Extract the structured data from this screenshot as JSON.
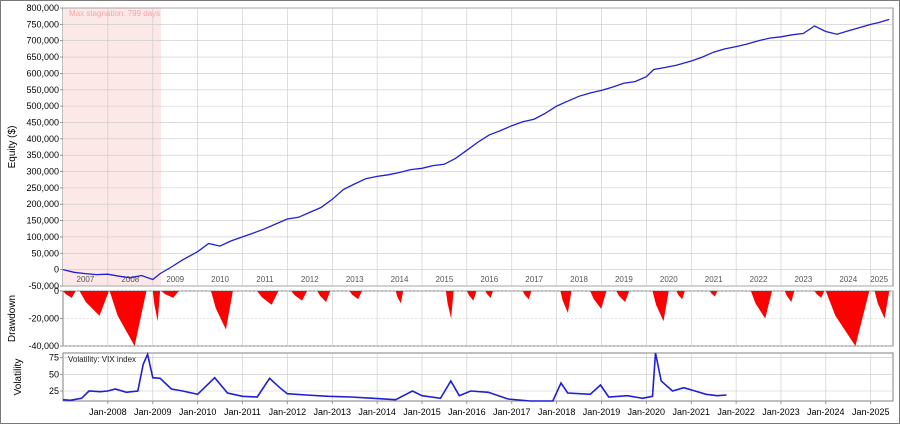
{
  "colors": {
    "equity_line": "#1f1fd6",
    "drawdown_fill": "#ff0000",
    "vix_line": "#1f1fd6",
    "stagnation_fill": "#fde8e8",
    "stagnation_text": "#f0a8a8",
    "grid": "#c8c8c8",
    "axis": "#808080"
  },
  "chart_data": [
    {
      "type": "line",
      "ylabel": "Equity ($)",
      "ylim": [
        -50000,
        800000
      ],
      "yticks": [
        -50000,
        0,
        50000,
        100000,
        150000,
        200000,
        250000,
        300000,
        350000,
        400000,
        450000,
        500000,
        550000,
        600000,
        650000,
        700000,
        750000,
        800000
      ],
      "ytick_labels": [
        "-50,000",
        "0",
        "50,000",
        "100,000",
        "150,000",
        "200,000",
        "250,000",
        "300,000",
        "350,000",
        "400,000",
        "450,000",
        "500,000",
        "550,000",
        "600,000",
        "650,000",
        "700,000",
        "750,000",
        "800,000"
      ],
      "year_labels": [
        "2007",
        "2008",
        "2009",
        "2010",
        "2011",
        "2012",
        "2013",
        "2014",
        "2015",
        "2016",
        "2017",
        "2018",
        "2019",
        "2020",
        "2021",
        "2022",
        "2023",
        "2024",
        "2025"
      ],
      "annotation": "Max stagnation: 799 days",
      "stagnation_range": [
        "2007-01-01",
        "2009-03-10"
      ],
      "grid": true,
      "series": [
        {
          "x": [
            "2007-01-01",
            "2007-04-01",
            "2007-07-01",
            "2007-10-01",
            "2008-01-01",
            "2008-04-01",
            "2008-07-01",
            "2008-10-01",
            "2009-01-01",
            "2009-03-01",
            "2009-06-01",
            "2009-09-01",
            "2010-01-01",
            "2010-04-01",
            "2010-07-01",
            "2010-10-01",
            "2011-01-01",
            "2011-04-01",
            "2011-07-01",
            "2011-10-01",
            "2012-01-01",
            "2012-04-01",
            "2012-07-01",
            "2012-10-01",
            "2013-01-01",
            "2013-04-01",
            "2013-07-01",
            "2013-10-01",
            "2014-01-01",
            "2014-04-01",
            "2014-07-01",
            "2014-10-01",
            "2015-01-01",
            "2015-04-01",
            "2015-07-01",
            "2015-10-01",
            "2016-01-01",
            "2016-04-01",
            "2016-07-01",
            "2016-10-01",
            "2017-01-01",
            "2017-04-01",
            "2017-07-01",
            "2017-10-01",
            "2018-01-01",
            "2018-04-01",
            "2018-07-01",
            "2018-10-01",
            "2019-01-01",
            "2019-04-01",
            "2019-07-01",
            "2019-10-01",
            "2020-01-01",
            "2020-03-01",
            "2020-06-01",
            "2020-09-01",
            "2021-01-01",
            "2021-04-01",
            "2021-07-01",
            "2021-10-01",
            "2022-01-01",
            "2022-04-01",
            "2022-07-01",
            "2022-10-01",
            "2023-01-01",
            "2023-04-01",
            "2023-07-01",
            "2023-10-01",
            "2024-01-01",
            "2024-04-01",
            "2024-07-01",
            "2024-10-01",
            "2025-01-01",
            "2025-03-01",
            "2025-06-01"
          ],
          "y": [
            0,
            -8000,
            -12000,
            -15000,
            -14000,
            -20000,
            -25000,
            -18000,
            -30000,
            -12000,
            8000,
            30000,
            55000,
            80000,
            72000,
            88000,
            100000,
            112000,
            125000,
            140000,
            155000,
            160000,
            175000,
            190000,
            215000,
            245000,
            262000,
            278000,
            285000,
            290000,
            297000,
            306000,
            310000,
            318000,
            322000,
            340000,
            365000,
            390000,
            412000,
            425000,
            440000,
            452000,
            460000,
            478000,
            500000,
            515000,
            530000,
            540000,
            548000,
            558000,
            570000,
            575000,
            590000,
            612000,
            618000,
            625000,
            638000,
            650000,
            665000,
            675000,
            682000,
            690000,
            700000,
            708000,
            712000,
            718000,
            722000,
            745000,
            728000,
            720000,
            730000,
            740000,
            750000,
            755000,
            765000
          ]
        }
      ]
    },
    {
      "type": "area",
      "ylabel": "Drawdown",
      "ylim": [
        -40000,
        0
      ],
      "yticks": [
        -40000,
        -20000,
        0
      ],
      "ytick_labels": [
        "-40,000",
        "-20,000",
        "0"
      ],
      "grid": true,
      "episodes": [
        {
          "start": "2007-01-01",
          "end": "2007-04-15",
          "depth": -5000
        },
        {
          "start": "2007-05-15",
          "end": "2008-01-10",
          "depth": -18000
        },
        {
          "start": "2008-01-15",
          "end": "2008-11-10",
          "depth": -40000
        },
        {
          "start": "2009-01-01",
          "end": "2009-03-01",
          "depth": -22000
        },
        {
          "start": "2009-03-10",
          "end": "2009-08-01",
          "depth": -5000
        },
        {
          "start": "2010-04-20",
          "end": "2010-10-15",
          "depth": -28000
        },
        {
          "start": "2011-05-01",
          "end": "2011-10-20",
          "depth": -10000
        },
        {
          "start": "2012-02-01",
          "end": "2012-06-10",
          "depth": -7000
        },
        {
          "start": "2012-09-01",
          "end": "2012-12-15",
          "depth": -8000
        },
        {
          "start": "2013-05-20",
          "end": "2013-09-01",
          "depth": -6000
        },
        {
          "start": "2014-06-01",
          "end": "2014-08-01",
          "depth": -9000
        },
        {
          "start": "2015-07-15",
          "end": "2015-09-15",
          "depth": -20000
        },
        {
          "start": "2016-01-01",
          "end": "2016-03-20",
          "depth": -7000
        },
        {
          "start": "2016-06-01",
          "end": "2016-08-01",
          "depth": -5000
        },
        {
          "start": "2017-04-01",
          "end": "2017-06-10",
          "depth": -6000
        },
        {
          "start": "2018-02-01",
          "end": "2018-05-01",
          "depth": -16000
        },
        {
          "start": "2018-10-01",
          "end": "2019-02-10",
          "depth": -13000
        },
        {
          "start": "2019-05-01",
          "end": "2019-08-15",
          "depth": -8000
        },
        {
          "start": "2020-02-20",
          "end": "2020-07-01",
          "depth": -22000
        },
        {
          "start": "2020-09-01",
          "end": "2020-11-10",
          "depth": -6000
        },
        {
          "start": "2021-06-01",
          "end": "2021-08-01",
          "depth": -4000
        },
        {
          "start": "2022-05-01",
          "end": "2022-10-20",
          "depth": -20000
        },
        {
          "start": "2023-02-01",
          "end": "2023-04-20",
          "depth": -8000
        },
        {
          "start": "2023-10-01",
          "end": "2023-12-20",
          "depth": -5000
        },
        {
          "start": "2024-01-01",
          "end": "2024-12-20",
          "depth": -40000
        },
        {
          "start": "2025-02-01",
          "end": "2025-06-01",
          "depth": -20000
        }
      ]
    },
    {
      "type": "line",
      "ylabel": "Volatility",
      "legend": "Volatility: VIX index",
      "ylim": [
        10,
        82
      ],
      "yticks": [
        25,
        50,
        75
      ],
      "ytick_labels": [
        "25",
        "50",
        "75"
      ],
      "xtick_labels": [
        "Jan-2008",
        "Jan-2009",
        "Jan-2010",
        "Jan-2011",
        "Jan-2012",
        "Jan-2013",
        "Jan-2014",
        "Jan-2015",
        "Jan-2016",
        "Jan-2017",
        "Jan-2018",
        "Jan-2019",
        "Jan-2020",
        "Jan-2021",
        "Jan-2022",
        "Jan-2023",
        "Jan-2024",
        "Jan-2025"
      ],
      "grid": true,
      "series": [
        {
          "name": "Volatility: VIX index",
          "x": [
            "2007-01-01",
            "2007-03-01",
            "2007-06-01",
            "2007-08-01",
            "2007-11-01",
            "2008-01-01",
            "2008-03-01",
            "2008-06-01",
            "2008-09-01",
            "2008-10-15",
            "2008-11-20",
            "2009-01-01",
            "2009-03-01",
            "2009-06-01",
            "2009-09-01",
            "2010-01-01",
            "2010-05-20",
            "2010-09-01",
            "2011-01-01",
            "2011-05-01",
            "2011-08-10",
            "2011-11-01",
            "2012-01-01",
            "2012-06-01",
            "2012-12-01",
            "2013-06-01",
            "2013-12-01",
            "2014-06-01",
            "2014-10-15",
            "2015-01-01",
            "2015-06-01",
            "2015-08-24",
            "2015-11-01",
            "2016-02-01",
            "2016-06-24",
            "2016-12-01",
            "2017-06-01",
            "2017-12-01",
            "2018-02-06",
            "2018-04-01",
            "2018-10-01",
            "2018-12-24",
            "2019-03-01",
            "2019-08-01",
            "2019-12-01",
            "2020-02-20",
            "2020-03-16",
            "2020-05-01",
            "2020-08-01",
            "2020-11-01",
            "2021-02-01",
            "2021-05-01",
            "2021-08-01",
            "2021-10-15"
          ],
          "y": [
            12,
            11,
            14,
            25,
            24,
            25,
            28,
            23,
            25,
            65,
            80,
            45,
            44,
            28,
            25,
            20,
            45,
            22,
            17,
            16,
            44,
            30,
            21,
            19,
            17,
            16,
            14,
            12,
            25,
            18,
            14,
            40,
            18,
            25,
            23,
            13,
            10,
            10,
            37,
            22,
            20,
            34,
            16,
            18,
            14,
            17,
            82,
            40,
            25,
            30,
            25,
            20,
            18,
            19
          ]
        }
      ]
    }
  ]
}
